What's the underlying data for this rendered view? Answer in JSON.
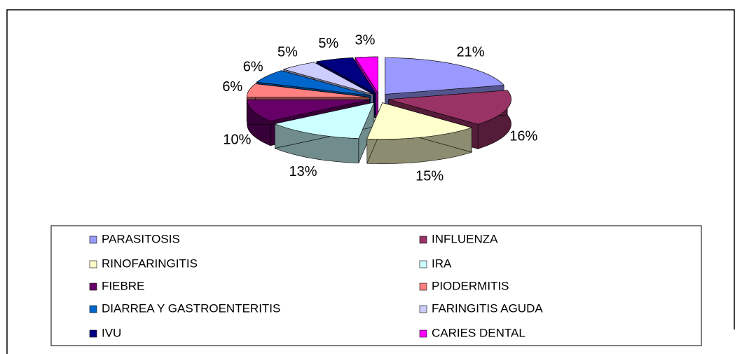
{
  "chart_data": {
    "type": "pie",
    "categories": [
      "PARASITOSIS",
      "INFLUENZA",
      "RINOFARINGITIS",
      "IRA",
      "FIEBRE",
      "PIODERMITIS",
      "DIARREA Y GASTROENTERITIS",
      "FARINGITIS AGUDA",
      "IVU",
      "CARIES DENTAL"
    ],
    "values": [
      21,
      16,
      15,
      13,
      10,
      6,
      6,
      5,
      5,
      3
    ],
    "value_labels": [
      "21%",
      "16%",
      "15%",
      "13%",
      "10%",
      "6%",
      "6%",
      "5%",
      "5%",
      "3%"
    ],
    "colors": [
      "#9999ff",
      "#993366",
      "#ffffcc",
      "#ccffff",
      "#660066",
      "#ff8080",
      "#0066cc",
      "#ccccff",
      "#000080",
      "#ff00ff"
    ],
    "legend": "bottom"
  }
}
